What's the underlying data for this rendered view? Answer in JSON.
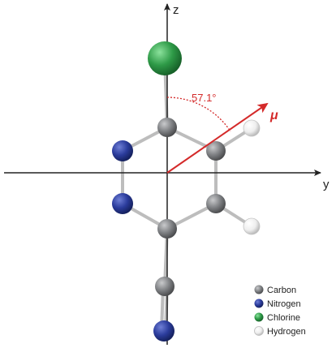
{
  "axes": {
    "z_label": "z",
    "y_label": "y"
  },
  "dipole": {
    "label": "μ",
    "angle_label": "57.1°",
    "color": "#d42a2a"
  },
  "legend": [
    {
      "label": "Carbon",
      "color": "#808285"
    },
    {
      "label": "Nitrogen",
      "color": "#2b3c9c"
    },
    {
      "label": "Chlorine",
      "color": "#2e9a47"
    },
    {
      "label": "Hydrogen",
      "color": "#eeeeee"
    }
  ]
}
